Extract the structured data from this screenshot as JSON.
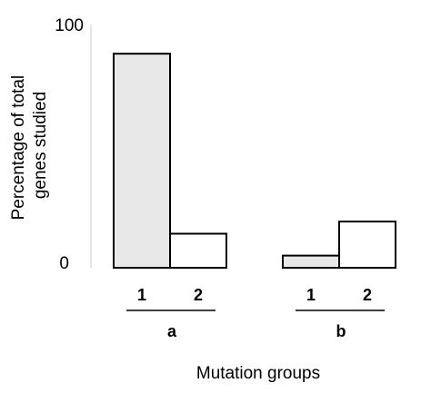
{
  "chart_data": {
    "type": "bar",
    "xlabel": "Mutation groups",
    "ylabel": "Percentage of total genes studied",
    "ylim": [
      0,
      100
    ],
    "yticks": [
      "0",
      "100"
    ],
    "grid": false,
    "groups": [
      {
        "label": "a",
        "bars": [
          {
            "category": "1",
            "value": 88,
            "color": "#e8e8e8"
          },
          {
            "category": "2",
            "value": 14,
            "color": "#ffffff"
          }
        ]
      },
      {
        "label": "b",
        "bars": [
          {
            "category": "1",
            "value": 5,
            "color": "#e8e8e8"
          },
          {
            "category": "2",
            "value": 19,
            "color": "#ffffff"
          }
        ]
      }
    ]
  }
}
